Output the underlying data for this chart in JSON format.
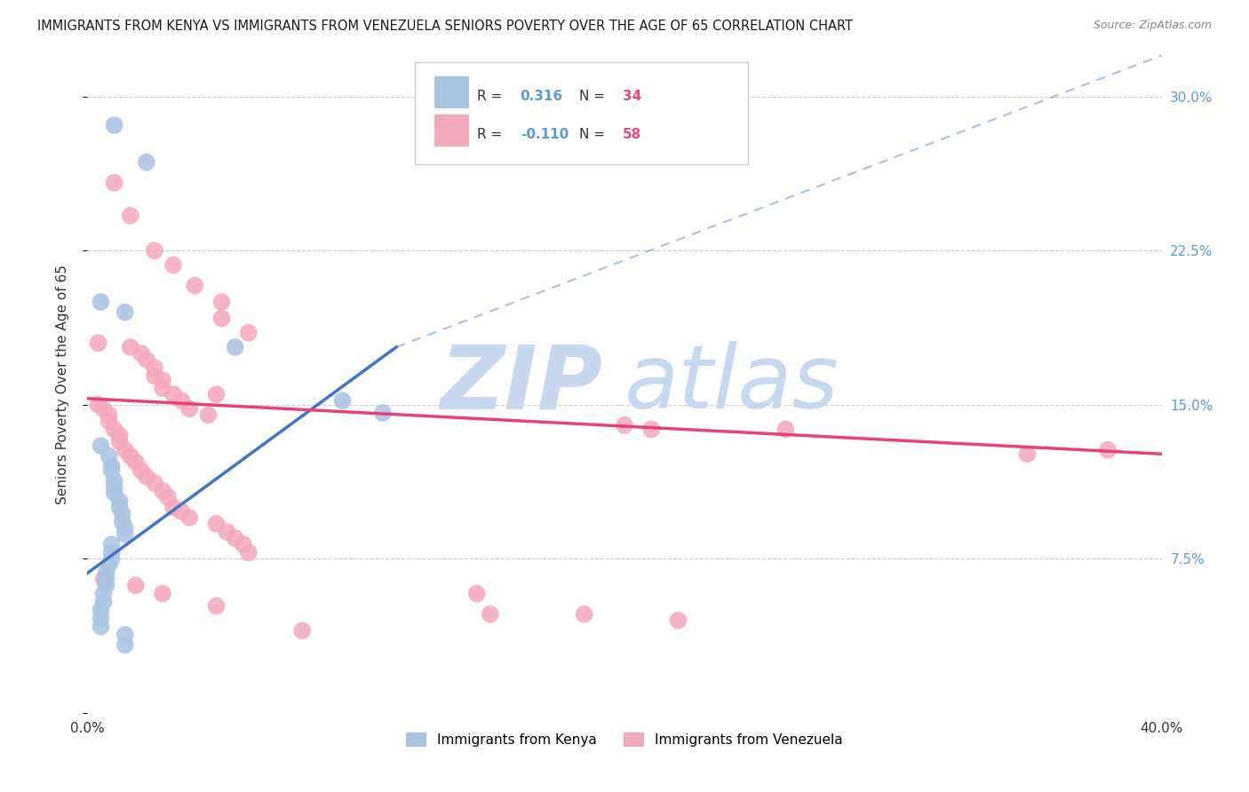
{
  "title": "IMMIGRANTS FROM KENYA VS IMMIGRANTS FROM VENEZUELA SENIORS POVERTY OVER THE AGE OF 65 CORRELATION CHART",
  "source": "Source: ZipAtlas.com",
  "ylabel": "Seniors Poverty Over the Age of 65",
  "xlim": [
    0.0,
    0.4
  ],
  "ylim": [
    0.0,
    0.32
  ],
  "xticks": [
    0.0,
    0.05,
    0.1,
    0.15,
    0.2,
    0.25,
    0.3,
    0.35,
    0.4
  ],
  "xticklabels": [
    "0.0%",
    "",
    "",
    "",
    "",
    "",
    "",
    "",
    "40.0%"
  ],
  "yticks": [
    0.0,
    0.075,
    0.15,
    0.225,
    0.3
  ],
  "yticklabels": [
    "",
    "7.5%",
    "15.0%",
    "22.5%",
    "30.0%"
  ],
  "kenya_R": "0.316",
  "kenya_N": "34",
  "venezuela_R": "-0.110",
  "venezuela_N": "58",
  "kenya_color": "#aac4e2",
  "venezuela_color": "#f4a8bc",
  "kenya_line_color": "#4472c4",
  "venezuela_line_color": "#e8407a",
  "kenya_line_solid": [
    [
      0.0,
      0.068
    ],
    [
      0.115,
      0.178
    ]
  ],
  "kenya_line_dashed": [
    [
      0.115,
      0.178
    ],
    [
      0.4,
      0.32
    ]
  ],
  "venezuela_line": [
    [
      0.0,
      0.153
    ],
    [
      0.4,
      0.126
    ]
  ],
  "kenya_scatter": [
    [
      0.01,
      0.286
    ],
    [
      0.022,
      0.268
    ],
    [
      0.005,
      0.2
    ],
    [
      0.014,
      0.195
    ],
    [
      0.055,
      0.178
    ],
    [
      0.095,
      0.152
    ],
    [
      0.11,
      0.146
    ],
    [
      0.005,
      0.13
    ],
    [
      0.008,
      0.125
    ],
    [
      0.009,
      0.12
    ],
    [
      0.009,
      0.118
    ],
    [
      0.01,
      0.113
    ],
    [
      0.01,
      0.11
    ],
    [
      0.01,
      0.107
    ],
    [
      0.012,
      0.103
    ],
    [
      0.012,
      0.1
    ],
    [
      0.013,
      0.097
    ],
    [
      0.013,
      0.093
    ],
    [
      0.014,
      0.09
    ],
    [
      0.014,
      0.087
    ],
    [
      0.009,
      0.082
    ],
    [
      0.009,
      0.078
    ],
    [
      0.009,
      0.075
    ],
    [
      0.008,
      0.072
    ],
    [
      0.007,
      0.068
    ],
    [
      0.007,
      0.065
    ],
    [
      0.007,
      0.062
    ],
    [
      0.006,
      0.058
    ],
    [
      0.006,
      0.054
    ],
    [
      0.005,
      0.05
    ],
    [
      0.005,
      0.046
    ],
    [
      0.005,
      0.042
    ],
    [
      0.014,
      0.038
    ],
    [
      0.014,
      0.033
    ]
  ],
  "venezuela_scatter": [
    [
      0.01,
      0.258
    ],
    [
      0.016,
      0.242
    ],
    [
      0.025,
      0.225
    ],
    [
      0.032,
      0.218
    ],
    [
      0.04,
      0.208
    ],
    [
      0.05,
      0.2
    ],
    [
      0.05,
      0.192
    ],
    [
      0.06,
      0.185
    ],
    [
      0.004,
      0.18
    ],
    [
      0.016,
      0.178
    ],
    [
      0.02,
      0.175
    ],
    [
      0.022,
      0.172
    ],
    [
      0.025,
      0.168
    ],
    [
      0.025,
      0.164
    ],
    [
      0.028,
      0.162
    ],
    [
      0.028,
      0.158
    ],
    [
      0.032,
      0.155
    ],
    [
      0.035,
      0.152
    ],
    [
      0.038,
      0.148
    ],
    [
      0.045,
      0.145
    ],
    [
      0.048,
      0.155
    ],
    [
      0.004,
      0.15
    ],
    [
      0.006,
      0.148
    ],
    [
      0.008,
      0.145
    ],
    [
      0.008,
      0.142
    ],
    [
      0.01,
      0.138
    ],
    [
      0.012,
      0.135
    ],
    [
      0.012,
      0.132
    ],
    [
      0.014,
      0.128
    ],
    [
      0.016,
      0.125
    ],
    [
      0.018,
      0.122
    ],
    [
      0.02,
      0.118
    ],
    [
      0.022,
      0.115
    ],
    [
      0.025,
      0.112
    ],
    [
      0.028,
      0.108
    ],
    [
      0.03,
      0.105
    ],
    [
      0.032,
      0.1
    ],
    [
      0.035,
      0.098
    ],
    [
      0.038,
      0.095
    ],
    [
      0.048,
      0.092
    ],
    [
      0.052,
      0.088
    ],
    [
      0.055,
      0.085
    ],
    [
      0.058,
      0.082
    ],
    [
      0.06,
      0.078
    ],
    [
      0.2,
      0.14
    ],
    [
      0.21,
      0.138
    ],
    [
      0.26,
      0.138
    ],
    [
      0.35,
      0.126
    ],
    [
      0.38,
      0.128
    ],
    [
      0.006,
      0.065
    ],
    [
      0.018,
      0.062
    ],
    [
      0.028,
      0.058
    ],
    [
      0.145,
      0.058
    ],
    [
      0.048,
      0.052
    ],
    [
      0.185,
      0.048
    ],
    [
      0.22,
      0.045
    ],
    [
      0.08,
      0.04
    ],
    [
      0.15,
      0.048
    ]
  ],
  "background_color": "#ffffff",
  "grid_color": "#cccccc",
  "watermark_zip": "ZIP",
  "watermark_atlas": "atlas",
  "watermark_color_zip": "#c8d8ee",
  "watermark_color_atlas": "#c8d8ee",
  "legend_kenya_label": "Immigrants from Kenya",
  "legend_venezuela_label": "Immigrants from Venezuela"
}
